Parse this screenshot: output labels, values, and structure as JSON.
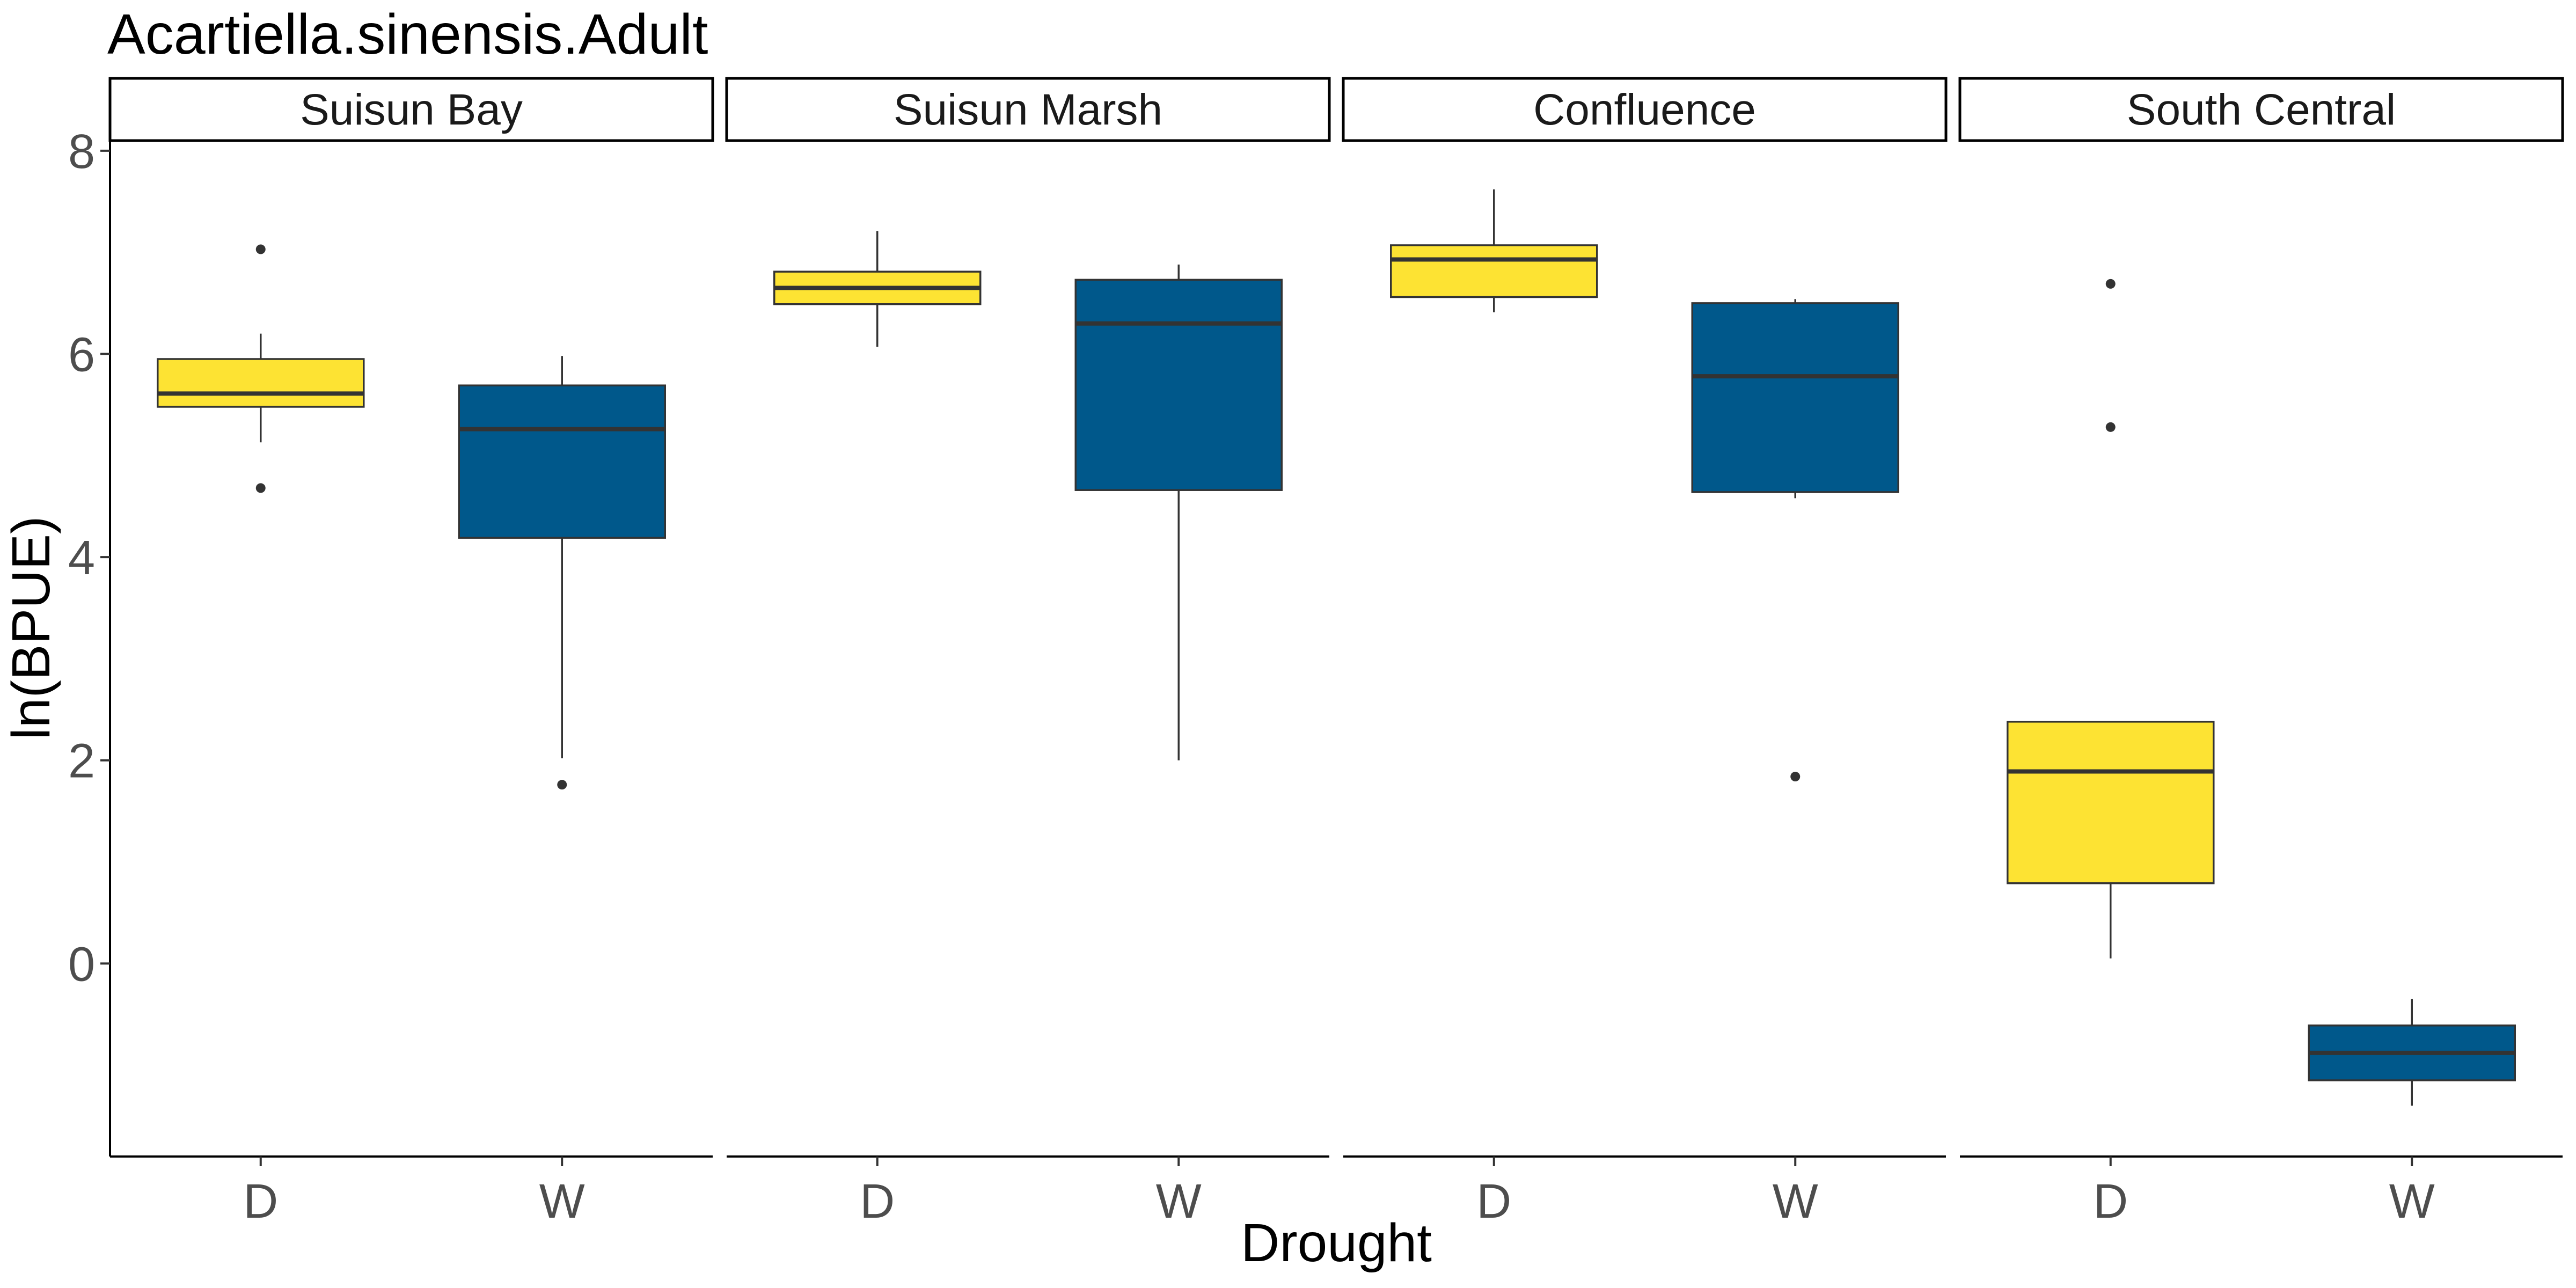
{
  "chart_data": {
    "type": "boxplot",
    "title": "Acartiella.sinensis.Adult",
    "xlabel": "Drought",
    "ylabel": "ln(BPUE)",
    "ylim": [
      -1.9,
      8.1
    ],
    "yticks": [
      0,
      2,
      4,
      6,
      8
    ],
    "categories": [
      "D",
      "W"
    ],
    "colors": {
      "D": "#FDE333",
      "W": "#00588B"
    },
    "grid": false,
    "legend": "none",
    "panels": [
      {
        "name": "Suisun Bay",
        "boxes": [
          {
            "category": "D",
            "lower_whisker": 5.13,
            "q1": 5.48,
            "median": 5.61,
            "q3": 5.95,
            "upper_whisker": 6.2,
            "outliers": [
              7.03,
              4.68
            ]
          },
          {
            "category": "W",
            "lower_whisker": 2.02,
            "q1": 4.19,
            "median": 5.26,
            "q3": 5.69,
            "upper_whisker": 5.98,
            "outliers": [
              1.76
            ]
          }
        ]
      },
      {
        "name": "Suisun Marsh",
        "boxes": [
          {
            "category": "D",
            "lower_whisker": 6.07,
            "q1": 6.49,
            "median": 6.65,
            "q3": 6.81,
            "upper_whisker": 7.21,
            "outliers": []
          },
          {
            "category": "W",
            "lower_whisker": 2.0,
            "q1": 4.66,
            "median": 6.3,
            "q3": 6.73,
            "upper_whisker": 6.88,
            "outliers": []
          }
        ]
      },
      {
        "name": "Confluence",
        "boxes": [
          {
            "category": "D",
            "lower_whisker": 6.41,
            "q1": 6.56,
            "median": 6.93,
            "q3": 7.07,
            "upper_whisker": 7.62,
            "outliers": []
          },
          {
            "category": "W",
            "lower_whisker": 4.58,
            "q1": 4.64,
            "median": 5.78,
            "q3": 6.5,
            "upper_whisker": 6.54,
            "outliers": [
              1.84
            ]
          }
        ]
      },
      {
        "name": "South Central",
        "boxes": [
          {
            "category": "D",
            "lower_whisker": 0.05,
            "q1": 0.79,
            "median": 1.89,
            "q3": 2.38,
            "upper_whisker": 2.38,
            "outliers": [
              6.69,
              5.28
            ]
          },
          {
            "category": "W",
            "lower_whisker": -1.4,
            "q1": -1.15,
            "median": -0.88,
            "q3": -0.61,
            "upper_whisker": -0.35,
            "outliers": []
          }
        ]
      }
    ]
  }
}
